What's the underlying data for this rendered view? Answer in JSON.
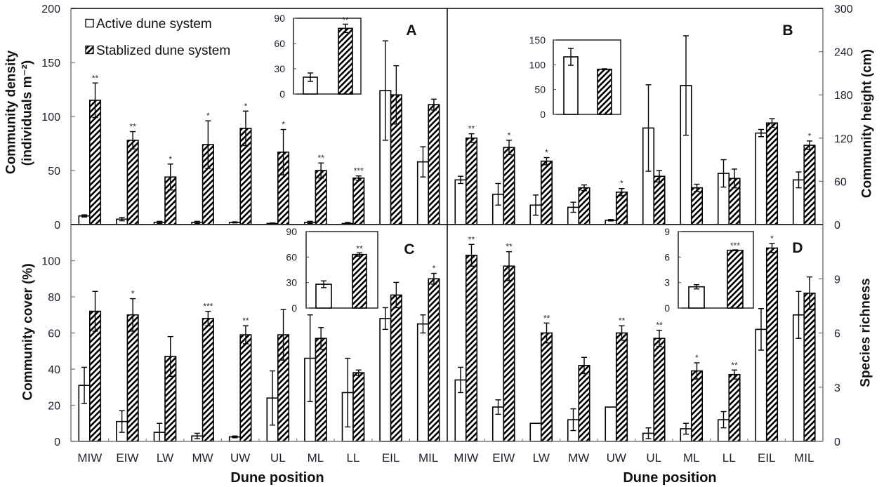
{
  "figure": {
    "legend": [
      {
        "label": "Active dune system",
        "pattern": "open"
      },
      {
        "label": "Stablized dune system",
        "pattern": "hatched"
      }
    ],
    "xlabel": "Dune position",
    "legend_position": "top-left of panel A"
  },
  "colors": {
    "active_fill": "#ffffff",
    "stabilized_hatch": "#000000",
    "bar_outline": "#000000",
    "axis": "#808080"
  },
  "categories": [
    "MIW",
    "EIW",
    "LW",
    "MW",
    "UW",
    "UL",
    "ML",
    "LL",
    "EIL",
    "MIL"
  ],
  "chart_data": [
    {
      "panel": "A",
      "type": "bar",
      "ylabel": [
        "Community density",
        "(individuals m⁻²)"
      ],
      "axis_side": "left",
      "ylim": [
        0,
        200
      ],
      "yticks": [
        0,
        50,
        100,
        150,
        200
      ],
      "grid": false,
      "series": [
        {
          "name": "Active dune system",
          "values": [
            8,
            5,
            2,
            2,
            2,
            1,
            2,
            1,
            124,
            58
          ],
          "errors": [
            1,
            1.5,
            1,
            1,
            0.5,
            0.5,
            1,
            1,
            46,
            14
          ]
        },
        {
          "name": "Stablized dune system",
          "values": [
            115,
            78,
            44,
            74,
            89,
            67,
            50,
            43,
            120,
            111
          ],
          "errors": [
            16,
            8,
            12,
            22,
            16,
            21,
            7,
            2,
            27,
            5
          ]
        }
      ],
      "significance": [
        "**",
        "**",
        "*",
        "*",
        "*",
        "*",
        "**",
        "***",
        "",
        ""
      ],
      "inset": {
        "ylim": [
          0,
          90
        ],
        "yticks": [
          0,
          30,
          60,
          90
        ],
        "series": [
          {
            "name": "Active dune system",
            "value": 20,
            "error": 5
          },
          {
            "name": "Stablized dune system",
            "value": 78,
            "error": 5
          }
        ],
        "significance": "**"
      }
    },
    {
      "panel": "B",
      "type": "bar",
      "ylabel": [
        "Community height (cm)"
      ],
      "axis_side": "right",
      "ylim": [
        0,
        300
      ],
      "yticks": [
        0,
        60,
        120,
        180,
        240,
        300
      ],
      "grid": false,
      "series": [
        {
          "name": "Active dune system",
          "values": [
            62,
            42,
            27,
            24,
            6,
            134,
            193,
            71,
            127,
            62
          ],
          "errors": [
            5,
            15,
            14,
            7,
            1,
            60,
            69,
            19,
            5,
            11
          ]
        },
        {
          "name": "Stablized dune system",
          "values": [
            120,
            107,
            88,
            51,
            45,
            67,
            51,
            64,
            141,
            110
          ],
          "errors": [
            6,
            10,
            5,
            4,
            5,
            8,
            5,
            13,
            6,
            6
          ]
        }
      ],
      "significance": [
        "**",
        "*",
        "*",
        "",
        "*",
        "",
        "",
        "",
        "",
        "*"
      ],
      "inset": {
        "ylim": [
          0,
          150
        ],
        "yticks": [
          0,
          50,
          100,
          150
        ],
        "series": [
          {
            "name": "Active dune system",
            "value": 116,
            "error": 17
          },
          {
            "name": "Stablized dune system",
            "value": 91,
            "error": 1
          }
        ],
        "significance": ""
      }
    },
    {
      "panel": "C",
      "type": "bar",
      "ylabel": [
        "Community cover (%)"
      ],
      "axis_side": "left",
      "ylim": [
        0,
        120
      ],
      "yticks": [
        0,
        20,
        40,
        60,
        80,
        100
      ],
      "grid": false,
      "series": [
        {
          "name": "Active dune system",
          "values": [
            31,
            11,
            5,
            3,
            2.5,
            24,
            46,
            27,
            68,
            65
          ],
          "errors": [
            10,
            6,
            5,
            1.5,
            0.5,
            15,
            24,
            19,
            6,
            5
          ]
        },
        {
          "name": "Stablized dune system",
          "values": [
            72,
            70,
            47,
            68,
            59,
            59,
            57,
            38,
            81,
            90
          ],
          "errors": [
            11,
            9,
            11,
            4,
            5,
            14,
            6,
            1.5,
            7,
            3
          ]
        }
      ],
      "significance": [
        "",
        "*",
        "",
        "***",
        "**",
        "",
        "",
        "",
        "",
        "*"
      ],
      "inset": {
        "ylim": [
          0,
          90
        ],
        "yticks": [
          0,
          30,
          60,
          90
        ],
        "series": [
          {
            "name": "Active dune system",
            "value": 28,
            "error": 4
          },
          {
            "name": "Stablized dune system",
            "value": 63,
            "error": 2
          }
        ],
        "significance": "**"
      }
    },
    {
      "panel": "D",
      "type": "bar",
      "ylabel": [
        "Species richness"
      ],
      "axis_side": "right",
      "ylim": [
        0,
        12
      ],
      "yticks": [
        0,
        3,
        6,
        9
      ],
      "grid": false,
      "series": [
        {
          "name": "Active dune system",
          "values": [
            3.4,
            1.9,
            1.0,
            1.2,
            1.9,
            0.45,
            0.7,
            1.2,
            6.2,
            7.0
          ],
          "errors": [
            0.7,
            0.4,
            0,
            0.6,
            0,
            0.3,
            0.3,
            0.45,
            1.15,
            1.3
          ]
        },
        {
          "name": "Stablized dune system",
          "values": [
            10.3,
            9.7,
            6.0,
            4.2,
            6.0,
            5.7,
            3.9,
            3.7,
            10.7,
            8.2
          ],
          "errors": [
            0.6,
            0.8,
            0.55,
            0.45,
            0.4,
            0.45,
            0.45,
            0.25,
            0.25,
            0.9
          ]
        }
      ],
      "significance": [
        "**",
        "**",
        "**",
        "",
        "**",
        "**",
        "*",
        "**",
        "*",
        ""
      ],
      "inset": {
        "ylim": [
          0,
          9
        ],
        "yticks": [
          0,
          3,
          6,
          9
        ],
        "series": [
          {
            "name": "Active dune system",
            "value": 2.5,
            "error": 0.25
          },
          {
            "name": "Stablized dune system",
            "value": 6.8,
            "error": 0.05
          }
        ],
        "significance": "***"
      }
    }
  ]
}
